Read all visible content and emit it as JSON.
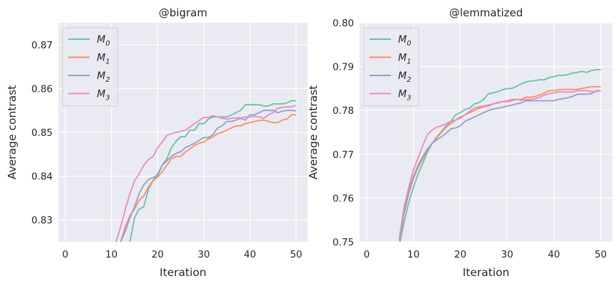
{
  "figure": {
    "ylabel": "Average contrast",
    "xlabel": "Iteration"
  },
  "colors": {
    "background": "#eaeaf2",
    "grid": "#ffffff",
    "M0": "#66c2a5",
    "M1": "#fc8d62",
    "M2": "#8da0cb",
    "M3": "#e78ac3"
  },
  "chart_data": [
    {
      "type": "line",
      "title": "@bigram",
      "xlabel": "Iteration",
      "ylabel": "Average contrast",
      "xlim": [
        -1.5,
        52.5
      ],
      "ylim": [
        0.825,
        0.875
      ],
      "xticks": [
        0,
        10,
        20,
        30,
        40,
        50
      ],
      "yticks": [
        0.83,
        0.84,
        0.85,
        0.86,
        0.87
      ],
      "ytick_labels": [
        "0.83",
        "0.84",
        "0.85",
        "0.86",
        "0.87"
      ],
      "grid": true,
      "legend": "top-left",
      "series": [
        {
          "name": "M",
          "sub": "0",
          "color": "#66c2a5",
          "x": [
            14,
            15,
            16,
            17,
            18,
            19,
            20,
            21,
            22,
            23,
            24,
            25,
            26,
            27,
            28,
            29,
            30,
            31,
            32,
            33,
            34,
            35,
            36,
            37,
            38,
            39,
            40,
            41,
            42,
            43,
            44,
            45,
            46,
            47,
            48,
            49,
            50
          ],
          "y": [
            0.825,
            0.8305,
            0.8325,
            0.833,
            0.837,
            0.839,
            0.8405,
            0.8425,
            0.844,
            0.8465,
            0.848,
            0.849,
            0.849,
            0.8505,
            0.8505,
            0.852,
            0.852,
            0.853,
            0.8535,
            0.8535,
            0.8535,
            0.8535,
            0.854,
            0.8545,
            0.855,
            0.8563,
            0.8563,
            0.8563,
            0.8563,
            0.856,
            0.856,
            0.8565,
            0.8565,
            0.8565,
            0.8567,
            0.8572,
            0.8572
          ]
        },
        {
          "name": "M",
          "sub": "1",
          "color": "#fc8d62",
          "x": [
            12,
            13,
            14,
            15,
            16,
            17,
            18,
            19,
            20,
            21,
            22,
            23,
            24,
            25,
            26,
            27,
            28,
            29,
            30,
            31,
            32,
            33,
            34,
            35,
            36,
            37,
            38,
            39,
            40,
            41,
            42,
            43,
            44,
            45,
            46,
            47,
            48,
            49,
            50
          ],
          "y": [
            0.825,
            0.8285,
            0.831,
            0.8325,
            0.8345,
            0.8355,
            0.8375,
            0.839,
            0.8398,
            0.841,
            0.8425,
            0.844,
            0.8445,
            0.8445,
            0.8455,
            0.8462,
            0.847,
            0.8475,
            0.8478,
            0.8485,
            0.849,
            0.8497,
            0.85,
            0.8505,
            0.851,
            0.8515,
            0.8515,
            0.852,
            0.8522,
            0.8525,
            0.8527,
            0.8528,
            0.8525,
            0.8522,
            0.8522,
            0.8528,
            0.853,
            0.854,
            0.854
          ]
        },
        {
          "name": "M",
          "sub": "2",
          "color": "#8da0cb",
          "x": [
            12,
            13,
            14,
            15,
            16,
            17,
            18,
            19,
            20,
            21,
            22,
            23,
            24,
            25,
            26,
            27,
            28,
            29,
            30,
            31,
            32,
            33,
            34,
            35,
            36,
            37,
            38,
            39,
            40,
            41,
            42,
            43,
            44,
            45,
            46,
            47,
            48,
            49,
            50
          ],
          "y": [
            0.825,
            0.8275,
            0.8305,
            0.833,
            0.836,
            0.838,
            0.8392,
            0.8397,
            0.8402,
            0.8425,
            0.8435,
            0.8445,
            0.8452,
            0.8456,
            0.8465,
            0.847,
            0.8475,
            0.8482,
            0.8488,
            0.8488,
            0.8495,
            0.851,
            0.8515,
            0.8525,
            0.8525,
            0.8528,
            0.8532,
            0.8528,
            0.854,
            0.854,
            0.8545,
            0.855,
            0.855,
            0.855,
            0.8545,
            0.8548,
            0.855,
            0.855,
            0.8549
          ]
        },
        {
          "name": "M",
          "sub": "3",
          "color": "#e78ac3",
          "x": [
            11,
            12,
            13,
            14,
            15,
            16,
            17,
            18,
            19,
            20,
            21,
            22,
            23,
            24,
            25,
            26,
            27,
            28,
            29,
            30,
            31,
            32,
            33,
            34,
            35,
            36,
            37,
            38,
            39,
            40,
            41,
            42,
            43,
            44,
            45,
            46,
            47,
            48,
            49,
            50
          ],
          "y": [
            0.825,
            0.8285,
            0.8325,
            0.836,
            0.839,
            0.8405,
            0.8425,
            0.8438,
            0.8445,
            0.8465,
            0.8478,
            0.8493,
            0.8497,
            0.85,
            0.8502,
            0.8505,
            0.8512,
            0.852,
            0.8527,
            0.8534,
            0.8534,
            0.8538,
            0.8535,
            0.8532,
            0.853,
            0.8532,
            0.8533,
            0.8533,
            0.8535,
            0.8535,
            0.8537,
            0.8535,
            0.8532,
            0.854,
            0.8545,
            0.8555,
            0.8557,
            0.8558,
            0.8558,
            0.8562
          ]
        }
      ]
    },
    {
      "type": "line",
      "title": "@lemmatized",
      "xlabel": "Iteration",
      "ylabel": "Average contrast",
      "xlim": [
        -1.5,
        52.5
      ],
      "ylim": [
        0.75,
        0.8
      ],
      "xticks": [
        0,
        10,
        20,
        30,
        40,
        50
      ],
      "yticks": [
        0.75,
        0.76,
        0.77,
        0.78,
        0.79,
        0.8
      ],
      "ytick_labels": [
        "0.75",
        "0.76",
        "0.77",
        "0.78",
        "0.79",
        "0.80"
      ],
      "grid": true,
      "legend": "top-left",
      "series": [
        {
          "name": "M",
          "sub": "0",
          "color": "#66c2a5",
          "x": [
            7,
            8,
            9,
            10,
            11,
            12,
            13,
            14,
            15,
            16,
            17,
            18,
            19,
            20,
            21,
            22,
            23,
            24,
            25,
            26,
            27,
            28,
            29,
            30,
            31,
            32,
            33,
            34,
            35,
            36,
            37,
            38,
            39,
            40,
            41,
            42,
            43,
            44,
            45,
            46,
            47,
            48,
            49,
            50
          ],
          "y": [
            0.7495,
            0.7545,
            0.759,
            0.7625,
            0.7655,
            0.768,
            0.7705,
            0.7725,
            0.774,
            0.7752,
            0.7765,
            0.7775,
            0.779,
            0.7795,
            0.7802,
            0.7805,
            0.7815,
            0.7818,
            0.7825,
            0.7838,
            0.784,
            0.7843,
            0.7847,
            0.785,
            0.785,
            0.7855,
            0.786,
            0.7865,
            0.7867,
            0.7868,
            0.787,
            0.787,
            0.7875,
            0.7877,
            0.788,
            0.788,
            0.7882,
            0.7885,
            0.7887,
            0.7889,
            0.7887,
            0.7891,
            0.7893,
            0.7893
          ]
        },
        {
          "name": "M",
          "sub": "1",
          "color": "#fc8d62",
          "x": [
            7,
            8,
            9,
            10,
            11,
            12,
            13,
            14,
            15,
            16,
            17,
            18,
            19,
            20,
            21,
            22,
            23,
            24,
            25,
            26,
            27,
            28,
            29,
            30,
            31,
            32,
            33,
            34,
            35,
            36,
            37,
            38,
            39,
            40,
            41,
            42,
            43,
            44,
            45,
            46,
            47,
            48,
            49,
            50
          ],
          "y": [
            0.7502,
            0.7565,
            0.761,
            0.7645,
            0.767,
            0.769,
            0.771,
            0.7725,
            0.7738,
            0.775,
            0.7762,
            0.777,
            0.7778,
            0.7782,
            0.779,
            0.7795,
            0.78,
            0.7805,
            0.7808,
            0.781,
            0.7815,
            0.7817,
            0.782,
            0.782,
            0.7822,
            0.7825,
            0.7825,
            0.783,
            0.783,
            0.7832,
            0.7835,
            0.784,
            0.7845,
            0.7845,
            0.7847,
            0.7848,
            0.7848,
            0.7848,
            0.7848,
            0.785,
            0.7852,
            0.7854,
            0.7854,
            0.7854
          ]
        },
        {
          "name": "M",
          "sub": "2",
          "color": "#8da0cb",
          "x": [
            7,
            8,
            9,
            10,
            11,
            12,
            13,
            14,
            15,
            16,
            17,
            18,
            19,
            20,
            21,
            22,
            23,
            24,
            25,
            26,
            27,
            28,
            29,
            30,
            31,
            32,
            33,
            34,
            35,
            36,
            37,
            38,
            39,
            40,
            41,
            42,
            43,
            44,
            45,
            46,
            47,
            48,
            49,
            50
          ],
          "y": [
            0.7505,
            0.757,
            0.7615,
            0.765,
            0.7675,
            0.7695,
            0.7712,
            0.7725,
            0.7733,
            0.774,
            0.7748,
            0.7758,
            0.776,
            0.7765,
            0.7775,
            0.778,
            0.7785,
            0.779,
            0.7795,
            0.78,
            0.7803,
            0.7805,
            0.7807,
            0.781,
            0.7812,
            0.7815,
            0.7817,
            0.7822,
            0.7822,
            0.7822,
            0.7822,
            0.7822,
            0.7822,
            0.7822,
            0.7825,
            0.7827,
            0.7829,
            0.7832,
            0.7837,
            0.7837,
            0.7837,
            0.7838,
            0.7845,
            0.7845
          ]
        },
        {
          "name": "M",
          "sub": "3",
          "color": "#e78ac3",
          "x": [
            7,
            8,
            9,
            10,
            11,
            12,
            13,
            14,
            15,
            16,
            17,
            18,
            19,
            20,
            21,
            22,
            23,
            24,
            25,
            26,
            27,
            28,
            29,
            30,
            31,
            32,
            33,
            34,
            35,
            36,
            37,
            38,
            39,
            40,
            41,
            42,
            43,
            44,
            45,
            46,
            47,
            48,
            49,
            50
          ],
          "y": [
            0.751,
            0.758,
            0.7625,
            0.7665,
            0.7692,
            0.772,
            0.7745,
            0.7755,
            0.7762,
            0.7765,
            0.777,
            0.7775,
            0.7778,
            0.7785,
            0.779,
            0.7798,
            0.7805,
            0.7808,
            0.781,
            0.7812,
            0.7815,
            0.7818,
            0.782,
            0.7822,
            0.7825,
            0.7825,
            0.7823,
            0.7825,
            0.7825,
            0.7827,
            0.783,
            0.7835,
            0.7838,
            0.784,
            0.7842,
            0.7842,
            0.7842,
            0.7842,
            0.7845,
            0.7845,
            0.7845,
            0.7843,
            0.7843,
            0.7845
          ]
        }
      ]
    }
  ]
}
